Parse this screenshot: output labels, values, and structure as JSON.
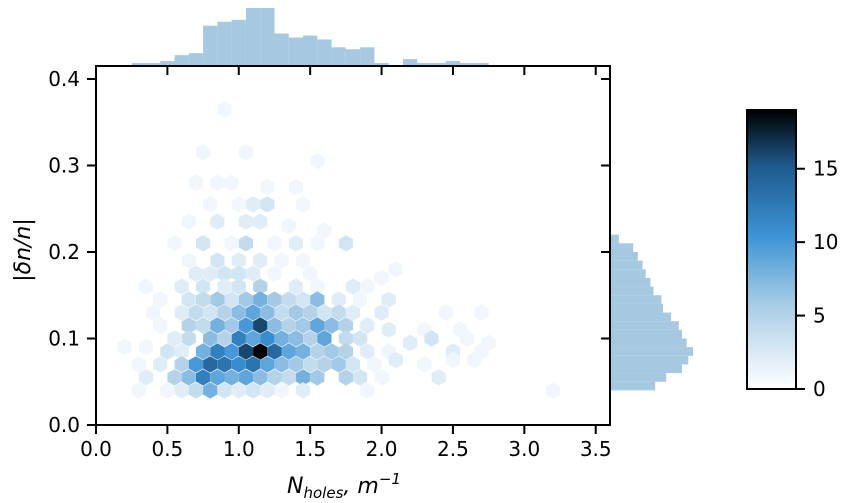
{
  "chart_data": {
    "type": "hexbin",
    "xlabel": {
      "base": "N",
      "sub": "holes",
      "rest": ", m",
      "sup": "−1"
    },
    "ylabel": "|δn/n|",
    "xlim": [
      0.0,
      3.6
    ],
    "ylim": [
      0.0,
      0.415
    ],
    "xticks": [
      0.0,
      0.5,
      1.0,
      1.5,
      2.0,
      2.5,
      3.0,
      3.5
    ],
    "xtick_labels": [
      "0.0",
      "0.5",
      "1.0",
      "1.5",
      "2.0",
      "2.5",
      "3.0",
      "3.5"
    ],
    "yticks": [
      0.0,
      0.1,
      0.2,
      0.3,
      0.4
    ],
    "ytick_labels": [
      "0.0",
      "0.1",
      "0.2",
      "0.3",
      "0.4"
    ],
    "colorbar": {
      "min": 0,
      "max": 19,
      "ticks": [
        0,
        5,
        10,
        15
      ],
      "tick_labels": [
        "0",
        "5",
        "10",
        "15"
      ],
      "cmap": [
        "#ffffff",
        "#a9cde6",
        "#3c93d6",
        "#1e5a8c",
        "#000000"
      ]
    },
    "marginal_color": "#a6c8e0",
    "hex_counts": [
      [
        0.9,
        0.365,
        1
      ],
      [
        0.75,
        0.315,
        1
      ],
      [
        1.05,
        0.315,
        1
      ],
      [
        1.55,
        0.305,
        1
      ],
      [
        0.7,
        0.28,
        1
      ],
      [
        0.85,
        0.28,
        1
      ],
      [
        0.95,
        0.28,
        1
      ],
      [
        1.2,
        0.275,
        1
      ],
      [
        1.4,
        0.275,
        1
      ],
      [
        0.8,
        0.255,
        1
      ],
      [
        1.0,
        0.255,
        1
      ],
      [
        1.1,
        0.255,
        2
      ],
      [
        1.2,
        0.255,
        3
      ],
      [
        1.45,
        0.255,
        1
      ],
      [
        0.65,
        0.235,
        1
      ],
      [
        0.85,
        0.235,
        2
      ],
      [
        1.05,
        0.235,
        2
      ],
      [
        1.15,
        0.235,
        2
      ],
      [
        1.35,
        0.23,
        1
      ],
      [
        1.6,
        0.225,
        1
      ],
      [
        0.55,
        0.21,
        1
      ],
      [
        0.75,
        0.21,
        3
      ],
      [
        0.95,
        0.21,
        1
      ],
      [
        1.05,
        0.21,
        4
      ],
      [
        1.25,
        0.21,
        1
      ],
      [
        1.4,
        0.21,
        2
      ],
      [
        1.55,
        0.21,
        1
      ],
      [
        1.75,
        0.21,
        3
      ],
      [
        0.65,
        0.19,
        1
      ],
      [
        0.85,
        0.19,
        3
      ],
      [
        1.0,
        0.19,
        2
      ],
      [
        1.15,
        0.19,
        2
      ],
      [
        1.3,
        0.19,
        1
      ],
      [
        1.45,
        0.19,
        1
      ],
      [
        0.7,
        0.175,
        2
      ],
      [
        0.8,
        0.175,
        2
      ],
      [
        0.9,
        0.175,
        3
      ],
      [
        1.0,
        0.175,
        3
      ],
      [
        1.1,
        0.175,
        2
      ],
      [
        1.25,
        0.175,
        1
      ],
      [
        1.5,
        0.175,
        1
      ],
      [
        2.0,
        0.17,
        1
      ],
      [
        2.1,
        0.18,
        1
      ],
      [
        0.35,
        0.16,
        1
      ],
      [
        0.6,
        0.16,
        2
      ],
      [
        0.75,
        0.16,
        3
      ],
      [
        0.9,
        0.16,
        2
      ],
      [
        1.0,
        0.16,
        3
      ],
      [
        1.15,
        0.16,
        5
      ],
      [
        1.4,
        0.16,
        2
      ],
      [
        1.55,
        0.16,
        1
      ],
      [
        1.8,
        0.16,
        2
      ],
      [
        1.9,
        0.16,
        1
      ],
      [
        0.45,
        0.145,
        1
      ],
      [
        0.65,
        0.145,
        3
      ],
      [
        0.75,
        0.145,
        4
      ],
      [
        0.85,
        0.145,
        6
      ],
      [
        0.95,
        0.145,
        3
      ],
      [
        1.05,
        0.145,
        6
      ],
      [
        1.15,
        0.145,
        8
      ],
      [
        1.25,
        0.145,
        6
      ],
      [
        1.35,
        0.145,
        4
      ],
      [
        1.45,
        0.145,
        3
      ],
      [
        1.55,
        0.145,
        7
      ],
      [
        1.7,
        0.145,
        2
      ],
      [
        1.85,
        0.145,
        1
      ],
      [
        2.05,
        0.145,
        2
      ],
      [
        0.4,
        0.13,
        1
      ],
      [
        0.6,
        0.13,
        2
      ],
      [
        0.7,
        0.13,
        4
      ],
      [
        0.8,
        0.13,
        3
      ],
      [
        0.9,
        0.13,
        5
      ],
      [
        1.0,
        0.13,
        7
      ],
      [
        1.1,
        0.13,
        9
      ],
      [
        1.2,
        0.13,
        7
      ],
      [
        1.3,
        0.13,
        4
      ],
      [
        1.4,
        0.13,
        6
      ],
      [
        1.5,
        0.13,
        5
      ],
      [
        1.6,
        0.13,
        3
      ],
      [
        1.7,
        0.13,
        4
      ],
      [
        1.8,
        0.13,
        2
      ],
      [
        2.0,
        0.13,
        2
      ],
      [
        2.45,
        0.13,
        1
      ],
      [
        2.7,
        0.13,
        1
      ],
      [
        0.45,
        0.115,
        1
      ],
      [
        0.65,
        0.115,
        5
      ],
      [
        0.75,
        0.115,
        4
      ],
      [
        0.85,
        0.115,
        8
      ],
      [
        0.95,
        0.115,
        6
      ],
      [
        1.05,
        0.115,
        10
      ],
      [
        1.15,
        0.115,
        16
      ],
      [
        1.25,
        0.115,
        7
      ],
      [
        1.35,
        0.115,
        5
      ],
      [
        1.45,
        0.115,
        6
      ],
      [
        1.55,
        0.115,
        9
      ],
      [
        1.65,
        0.115,
        7
      ],
      [
        1.75,
        0.115,
        5
      ],
      [
        1.9,
        0.115,
        2
      ],
      [
        2.05,
        0.11,
        2
      ],
      [
        2.3,
        0.11,
        1
      ],
      [
        2.55,
        0.11,
        1
      ],
      [
        0.55,
        0.1,
        2
      ],
      [
        0.65,
        0.1,
        4
      ],
      [
        0.8,
        0.1,
        7
      ],
      [
        0.9,
        0.1,
        5
      ],
      [
        1.0,
        0.1,
        12
      ],
      [
        1.1,
        0.1,
        9
      ],
      [
        1.2,
        0.1,
        11
      ],
      [
        1.3,
        0.1,
        8
      ],
      [
        1.4,
        0.1,
        7
      ],
      [
        1.5,
        0.1,
        5
      ],
      [
        1.6,
        0.1,
        9
      ],
      [
        1.75,
        0.1,
        4
      ],
      [
        1.85,
        0.1,
        3
      ],
      [
        2.2,
        0.095,
        2
      ],
      [
        2.35,
        0.1,
        3
      ],
      [
        2.6,
        0.1,
        1
      ],
      [
        2.75,
        0.095,
        1
      ],
      [
        0.2,
        0.09,
        1
      ],
      [
        0.35,
        0.09,
        1
      ],
      [
        0.5,
        0.085,
        3
      ],
      [
        0.6,
        0.085,
        2
      ],
      [
        0.75,
        0.085,
        8
      ],
      [
        0.85,
        0.085,
        12
      ],
      [
        0.95,
        0.085,
        10
      ],
      [
        1.05,
        0.085,
        16
      ],
      [
        1.15,
        0.085,
        19
      ],
      [
        1.25,
        0.085,
        14
      ],
      [
        1.35,
        0.085,
        9
      ],
      [
        1.45,
        0.085,
        8
      ],
      [
        1.55,
        0.085,
        5
      ],
      [
        1.65,
        0.085,
        6
      ],
      [
        1.75,
        0.085,
        5
      ],
      [
        1.9,
        0.085,
        2
      ],
      [
        2.05,
        0.085,
        1
      ],
      [
        2.5,
        0.085,
        2
      ],
      [
        2.7,
        0.085,
        1
      ],
      [
        0.3,
        0.07,
        1
      ],
      [
        0.45,
        0.07,
        2
      ],
      [
        0.6,
        0.07,
        5
      ],
      [
        0.7,
        0.07,
        10
      ],
      [
        0.8,
        0.07,
        14
      ],
      [
        0.9,
        0.07,
        13
      ],
      [
        1.0,
        0.07,
        11
      ],
      [
        1.1,
        0.07,
        13
      ],
      [
        1.2,
        0.07,
        9
      ],
      [
        1.3,
        0.07,
        7
      ],
      [
        1.4,
        0.07,
        6
      ],
      [
        1.5,
        0.07,
        4
      ],
      [
        1.6,
        0.07,
        5
      ],
      [
        1.7,
        0.07,
        6
      ],
      [
        1.8,
        0.07,
        3
      ],
      [
        1.95,
        0.07,
        1
      ],
      [
        2.1,
        0.075,
        2
      ],
      [
        2.3,
        0.07,
        1
      ],
      [
        2.5,
        0.075,
        1
      ],
      [
        2.65,
        0.075,
        1
      ],
      [
        0.35,
        0.055,
        2
      ],
      [
        0.55,
        0.055,
        5
      ],
      [
        0.65,
        0.055,
        7
      ],
      [
        0.75,
        0.055,
        12
      ],
      [
        0.85,
        0.055,
        9
      ],
      [
        0.95,
        0.055,
        8
      ],
      [
        1.05,
        0.055,
        9
      ],
      [
        1.15,
        0.055,
        7
      ],
      [
        1.25,
        0.055,
        5
      ],
      [
        1.35,
        0.055,
        4
      ],
      [
        1.45,
        0.055,
        8
      ],
      [
        1.55,
        0.055,
        6
      ],
      [
        1.75,
        0.055,
        5
      ],
      [
        1.85,
        0.055,
        3
      ],
      [
        2.0,
        0.055,
        1
      ],
      [
        2.4,
        0.055,
        2
      ],
      [
        0.3,
        0.04,
        1
      ],
      [
        0.5,
        0.04,
        1
      ],
      [
        0.6,
        0.04,
        2
      ],
      [
        0.7,
        0.04,
        4
      ],
      [
        0.8,
        0.04,
        8
      ],
      [
        0.9,
        0.04,
        3
      ],
      [
        1.0,
        0.04,
        2
      ],
      [
        1.1,
        0.04,
        3
      ],
      [
        1.2,
        0.04,
        2
      ],
      [
        1.3,
        0.04,
        1
      ],
      [
        1.45,
        0.04,
        2
      ],
      [
        1.9,
        0.04,
        1
      ],
      [
        3.2,
        0.04,
        1
      ]
    ],
    "marginal_x": {
      "bin_edges": [
        0.25,
        0.35,
        0.45,
        0.55,
        0.65,
        0.75,
        0.85,
        0.95,
        1.05,
        1.15,
        1.25,
        1.35,
        1.45,
        1.55,
        1.65,
        1.75,
        1.85,
        1.95,
        2.05,
        2.15,
        2.25,
        2.35,
        2.45,
        2.55,
        2.65,
        2.75
      ],
      "counts": [
        1,
        1,
        2,
        5,
        6,
        20,
        22,
        23,
        29,
        29,
        16,
        14,
        15,
        13,
        9,
        8,
        9,
        1,
        0,
        3,
        1,
        1,
        2,
        1,
        1
      ]
    },
    "marginal_y": {
      "bin_edges": [
        0.04,
        0.05,
        0.06,
        0.07,
        0.08,
        0.09,
        0.1,
        0.11,
        0.12,
        0.13,
        0.14,
        0.15,
        0.16,
        0.17,
        0.18,
        0.19,
        0.2,
        0.21,
        0.22
      ],
      "counts": [
        28,
        35,
        45,
        49,
        52,
        48,
        45,
        43,
        38,
        33,
        32,
        27,
        25,
        22,
        20,
        17,
        14,
        5
      ]
    }
  }
}
